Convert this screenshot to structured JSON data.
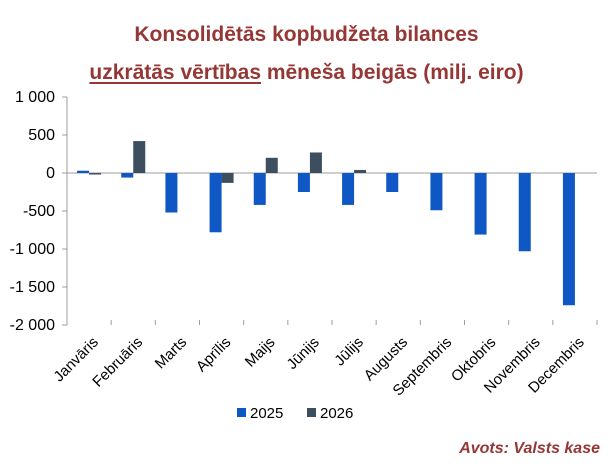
{
  "title_line1": "Konsolidētās kopbudžeta bilances",
  "title_line2_underlined": "uzkrātās vērtības",
  "title_line2_rest": " mēneša beigās (milj. eiro)",
  "source": "Avots: Valsts kase",
  "colors": {
    "s2025": "#0E57C4",
    "s2026": "#3D4F5E",
    "title": "#953735",
    "axis": "#9E9E9E"
  },
  "chart_data": {
    "type": "bar",
    "categories": [
      "Janvāris",
      "Februāris",
      "Marts",
      "Aprīlis",
      "Maijs",
      "Jūnijs",
      "Jūlijs",
      "Augusts",
      "Septembris",
      "Oktobris",
      "Novembris",
      "Decembris"
    ],
    "series": [
      {
        "name": "2025",
        "values": [
          30,
          -60,
          -520,
          -780,
          -420,
          -250,
          -420,
          -250,
          -490,
          -810,
          -1030,
          -1740
        ]
      },
      {
        "name": "2026",
        "values": [
          -20,
          420,
          null,
          -130,
          200,
          270,
          40,
          null,
          null,
          null,
          null,
          null
        ]
      }
    ],
    "ylim": [
      -2000,
      1000
    ],
    "yticks": [
      1000,
      500,
      0,
      -500,
      -1000,
      -1500,
      -2000
    ],
    "ytick_labels": [
      "1 000",
      "500",
      "0",
      "-500",
      "-1 000",
      "-1 500",
      "-2 000"
    ],
    "legend_position": "bottom",
    "grid": false
  }
}
